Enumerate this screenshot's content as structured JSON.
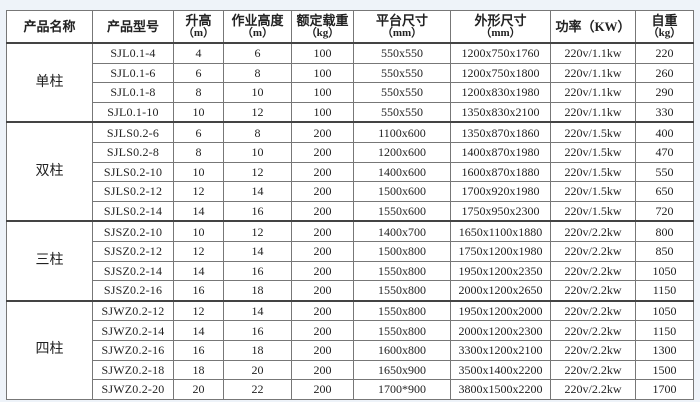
{
  "table": {
    "headers": [
      {
        "label": "产品名称",
        "unit": ""
      },
      {
        "label": "产品型号",
        "unit": ""
      },
      {
        "label": "升高",
        "unit": "（m）"
      },
      {
        "label": "作业高度",
        "unit": "（m）"
      },
      {
        "label": "额定载重",
        "unit": "（kg）"
      },
      {
        "label": "平台尺寸",
        "unit": "（mm）"
      },
      {
        "label": "外形尺寸",
        "unit": "（mm）"
      },
      {
        "label": "功率（KW）",
        "unit": ""
      },
      {
        "label": "自重",
        "unit": "（kg）"
      }
    ],
    "groups": [
      {
        "name": "单柱",
        "rows": [
          [
            "SJL0.1-4",
            "4",
            "6",
            "100",
            "550x550",
            "1200x750x1760",
            "220v/1.1kw",
            "220"
          ],
          [
            "SJL0.1-6",
            "6",
            "8",
            "100",
            "550x550",
            "1200x750x1800",
            "220v/1.1kw",
            "260"
          ],
          [
            "SJL0.1-8",
            "8",
            "10",
            "100",
            "550x550",
            "1200x830x1980",
            "220v/1.1kw",
            "290"
          ],
          [
            "SJL0.1-10",
            "10",
            "12",
            "100",
            "550x550",
            "1350x830x2100",
            "220v/1.1kw",
            "330"
          ]
        ]
      },
      {
        "name": "双柱",
        "rows": [
          [
            "SJLS0.2-6",
            "6",
            "8",
            "200",
            "1100x600",
            "1350x870x1860",
            "220v/1.5kw",
            "400"
          ],
          [
            "SJLS0.2-8",
            "8",
            "10",
            "200",
            "1200x600",
            "1400x870x1980",
            "220v/1.5kw",
            "470"
          ],
          [
            "SJLS0.2-10",
            "10",
            "12",
            "200",
            "1400x600",
            "1600x870x1880",
            "220v/1.5kw",
            "550"
          ],
          [
            "SJLS0.2-12",
            "12",
            "14",
            "200",
            "1500x600",
            "1700x920x1980",
            "220v/1.5kw",
            "650"
          ],
          [
            "SJLS0.2-14",
            "14",
            "16",
            "200",
            "1550x600",
            "1750x950x2300",
            "220v/1.5kw",
            "720"
          ]
        ]
      },
      {
        "name": "三柱",
        "rows": [
          [
            "SJSZ0.2-10",
            "10",
            "12",
            "200",
            "1400x700",
            "1650x1100x1880",
            "220v/2.2kw",
            "800"
          ],
          [
            "SJSZ0.2-12",
            "12",
            "14",
            "200",
            "1500x800",
            "1750x1200x1980",
            "220v/2.2kw",
            "850"
          ],
          [
            "SJSZ0.2-14",
            "14",
            "16",
            "200",
            "1550x800",
            "1950x1200x2350",
            "220v/2.2kw",
            "1050"
          ],
          [
            "SJSZ0.2-16",
            "16",
            "18",
            "200",
            "1550x800",
            "2000x1200x2650",
            "220v/2.2kw",
            "1150"
          ]
        ]
      },
      {
        "name": "四柱",
        "rows": [
          [
            "SJWZ0.2-12",
            "12",
            "14",
            "200",
            "1550x800",
            "1950x1200x2000",
            "220v/2.2kw",
            "1050"
          ],
          [
            "SJWZ0.2-14",
            "14",
            "16",
            "200",
            "1550x800",
            "2000x1200x2300",
            "220v/2.2kw",
            "1150"
          ],
          [
            "SJWZ0.2-16",
            "16",
            "18",
            "200",
            "1600x800",
            "3300x1200x2100",
            "220v/2.2kw",
            "1300"
          ],
          [
            "SJWZ0.2-18",
            "18",
            "20",
            "200",
            "1650x900",
            "3500x1400x2200",
            "220v/2.2kw",
            "1500"
          ],
          [
            "SJWZ0.2-20",
            "20",
            "22",
            "200",
            "1700*900",
            "3800x1500x2200",
            "220v/2.2kw",
            "1700"
          ]
        ]
      }
    ]
  }
}
